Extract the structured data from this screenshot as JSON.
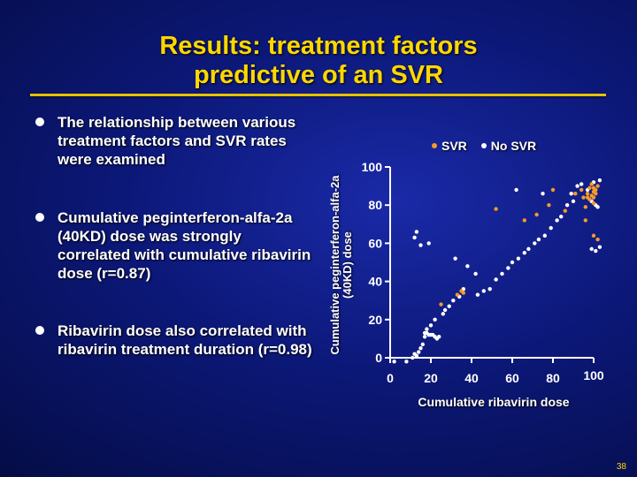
{
  "slide": {
    "title_line1": "Results: treatment factors",
    "title_line2": "predictive of an SVR",
    "page_number": "38",
    "colors": {
      "title": "#ffd700",
      "rule": "#e6c200",
      "svr": "#f59a2a",
      "no_svr": "#ffffff"
    }
  },
  "bullets": [
    "The relationship between various treatment factors and SVR rates were examined",
    "Cumulative peginterferon-alfa-2a (40KD) dose was strongly correlated with cumulative ribavirin dose (r=0.87)",
    "Ribavirin dose also correlated with ribavirin treatment duration (r=0.98)"
  ],
  "chart_data": {
    "type": "scatter",
    "xlabel": "Cumulative ribavirin dose",
    "ylabel": "Cumulative peginterferon-alfa-2a (40KD) dose",
    "xlim": [
      0,
      100
    ],
    "ylim": [
      0,
      100
    ],
    "x_ticks": [
      "0",
      "20",
      "40",
      "60",
      "80",
      "100"
    ],
    "y_ticks": [
      "0",
      "20",
      "40",
      "60",
      "80",
      "100"
    ],
    "legend": [
      "SVR",
      "No SVR"
    ],
    "series": [
      {
        "name": "SVR",
        "color": "#f59a2a",
        "points": [
          [
            96,
            79
          ],
          [
            100,
            81
          ],
          [
            98,
            83
          ],
          [
            95,
            84
          ],
          [
            100,
            84
          ],
          [
            99,
            85
          ],
          [
            97,
            86
          ],
          [
            101,
            86
          ],
          [
            100,
            87
          ],
          [
            94,
            88
          ],
          [
            101,
            88
          ],
          [
            98,
            89
          ],
          [
            100,
            89
          ],
          [
            102,
            90
          ],
          [
            99,
            91
          ],
          [
            97,
            84
          ],
          [
            91,
            86
          ],
          [
            80,
            88
          ],
          [
            86,
            77
          ],
          [
            78,
            80
          ],
          [
            72,
            75
          ],
          [
            66,
            72
          ],
          [
            52,
            78
          ],
          [
            35,
            35
          ],
          [
            33,
            33
          ],
          [
            36,
            34
          ],
          [
            25,
            28
          ],
          [
            102,
            62
          ],
          [
            100,
            64
          ],
          [
            96,
            72
          ]
        ]
      },
      {
        "name": "No SVR",
        "color": "#ffffff",
        "points": [
          [
            92,
            90
          ],
          [
            94,
            91
          ],
          [
            97,
            88
          ],
          [
            99,
            82
          ],
          [
            101,
            80
          ],
          [
            102,
            79
          ],
          [
            100,
            92
          ],
          [
            103,
            93
          ],
          [
            89,
            86
          ],
          [
            90,
            82
          ],
          [
            87,
            80
          ],
          [
            84,
            74
          ],
          [
            82,
            72
          ],
          [
            79,
            68
          ],
          [
            76,
            64
          ],
          [
            73,
            62
          ],
          [
            71,
            60
          ],
          [
            68,
            57
          ],
          [
            66,
            55
          ],
          [
            63,
            52
          ],
          [
            60,
            50
          ],
          [
            58,
            47
          ],
          [
            55,
            44
          ],
          [
            52,
            41
          ],
          [
            49,
            36
          ],
          [
            46,
            35
          ],
          [
            43,
            33
          ],
          [
            36,
            36
          ],
          [
            34,
            32
          ],
          [
            31,
            30
          ],
          [
            29,
            27
          ],
          [
            27,
            25
          ],
          [
            26,
            23
          ],
          [
            22,
            20
          ],
          [
            20,
            17
          ],
          [
            18,
            15
          ],
          [
            17,
            11
          ],
          [
            16,
            7
          ],
          [
            15,
            5
          ],
          [
            14,
            3
          ],
          [
            13,
            1
          ],
          [
            12,
            2
          ],
          [
            11,
            0
          ],
          [
            17,
            13
          ],
          [
            18,
            13
          ],
          [
            19,
            12
          ],
          [
            20,
            12
          ],
          [
            21,
            12
          ],
          [
            22,
            11
          ],
          [
            23,
            10
          ],
          [
            24,
            11
          ],
          [
            13,
            66
          ],
          [
            12,
            63
          ],
          [
            15,
            59
          ],
          [
            19,
            60
          ],
          [
            32,
            52
          ],
          [
            38,
            48
          ],
          [
            42,
            44
          ],
          [
            62,
            88
          ],
          [
            75,
            86
          ],
          [
            103,
            58
          ],
          [
            101,
            56
          ],
          [
            99,
            57
          ],
          [
            8,
            -2
          ],
          [
            2,
            -2
          ]
        ]
      }
    ]
  }
}
